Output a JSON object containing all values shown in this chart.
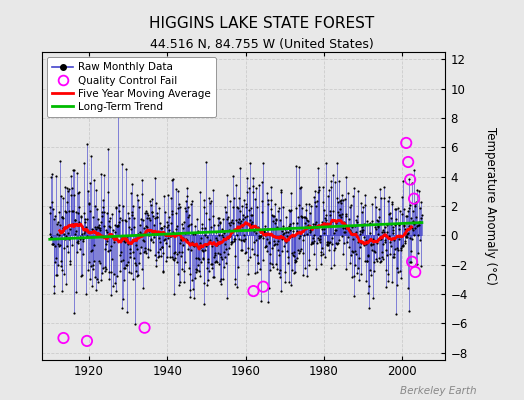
{
  "title": "HIGGINS LAKE STATE FOREST",
  "subtitle": "44.516 N, 84.755 W (United States)",
  "ylabel": "Temperature Anomaly (°C)",
  "watermark": "Berkeley Earth",
  "xlim": [
    1908,
    2011
  ],
  "ylim": [
    -8.5,
    12.5
  ],
  "yticks": [
    -8,
    -6,
    -4,
    -2,
    0,
    2,
    4,
    6,
    8,
    10,
    12
  ],
  "xticks": [
    1920,
    1940,
    1960,
    1980,
    2000
  ],
  "bg_color": "#e8e8e8",
  "plot_bg_color": "#e8e8e8",
  "line_color": "#4444cc",
  "dot_color": "#000000",
  "ma_color": "#ff0000",
  "trend_color": "#00bb00",
  "qc_color": "#ff00ff",
  "seed": 42,
  "n_years": 95,
  "start_year": 1910,
  "trend_slope": 0.012,
  "trend_intercept": -0.45
}
